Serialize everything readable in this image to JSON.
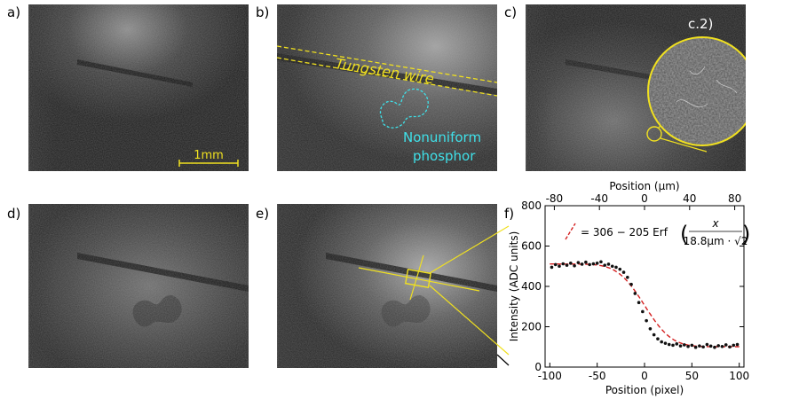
{
  "panels": {
    "a": "a)",
    "b": "b)",
    "c": "c)",
    "d": "d)",
    "e": "e)",
    "f": "f)"
  },
  "annotations": {
    "scale_bar": "1mm",
    "tungsten": "Tungsten wire",
    "nonuniform_1": "Nonuniform",
    "nonuniform_2": "phosphor",
    "inset_label": "c.2)"
  },
  "colors": {
    "annotation_yellow": "#f0e020",
    "annotation_cyan": "#3fe0e8",
    "fit_red": "#d42020",
    "data_black": "#111111"
  },
  "chart_data": {
    "type": "scatter",
    "xlabel": "Position (pixel)",
    "x2label": "Position (µm)",
    "ylabel": "Intensity (ADC units)",
    "xlim": [
      -105,
      105
    ],
    "ylim": [
      0,
      800
    ],
    "x2lim": [
      -88.2,
      88.2
    ],
    "xticks": [
      -100,
      -50,
      0,
      50,
      100
    ],
    "x2ticks": [
      -80,
      -40,
      0,
      40,
      80
    ],
    "yticks": [
      0,
      200,
      400,
      600,
      800
    ],
    "legend": {
      "prefix": "= 306 − 205 Erf",
      "numerator": "x",
      "denominator": "18.8µm · √2"
    },
    "fit": {
      "offset": 306,
      "amplitude": 205,
      "sigma_pixels": 22.4
    },
    "series": [
      {
        "type": "points",
        "x": [
          -98,
          -94,
          -90,
          -86,
          -82,
          -78,
          -74,
          -70,
          -66,
          -62,
          -58,
          -54,
          -50,
          -46,
          -42,
          -38,
          -34,
          -30,
          -26,
          -22,
          -18,
          -14,
          -10,
          -6,
          -2,
          2,
          6,
          10,
          14,
          18,
          22,
          26,
          30,
          34,
          38,
          42,
          46,
          50,
          54,
          58,
          62,
          66,
          70,
          74,
          78,
          82,
          86,
          90,
          94,
          98
        ],
        "y": [
          495,
          508,
          500,
          512,
          505,
          515,
          502,
          518,
          510,
          520,
          508,
          512,
          515,
          522,
          505,
          510,
          500,
          495,
          485,
          470,
          445,
          410,
          365,
          320,
          275,
          230,
          190,
          160,
          140,
          125,
          118,
          112,
          108,
          115,
          105,
          110,
          102,
          108,
          98,
          105,
          100,
          112,
          104,
          98,
          106,
          102,
          110,
          100,
          108,
          112
        ]
      }
    ]
  }
}
